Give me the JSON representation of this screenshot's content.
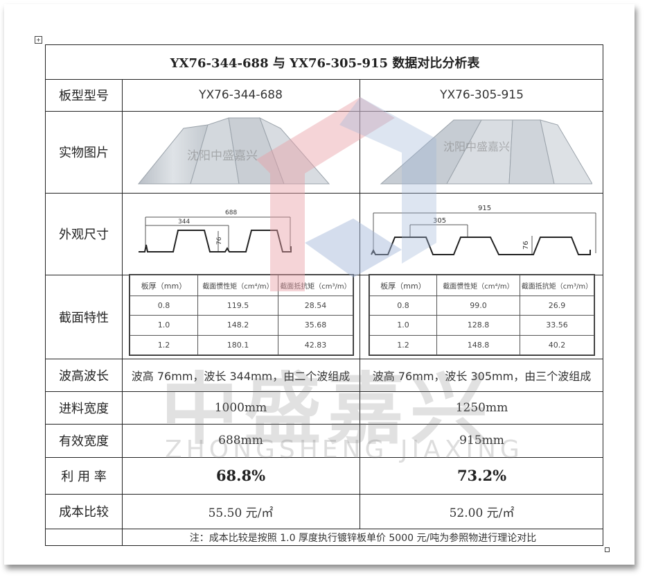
{
  "title": "YX76-344-688 与 YX76-305-915 数据对比分析表",
  "row_labels": {
    "model": "板型型号",
    "photo": "实物图片",
    "dimensions": "外观尺寸",
    "section": "截面特性",
    "wave": "波高波长",
    "feed_width": "进料宽度",
    "effective_width": "有效宽度",
    "utilization": "利 用 率",
    "cost": "成本比较"
  },
  "products": [
    {
      "model": "YX76-344-688",
      "photo_watermark": "沈阳中盛嘉兴",
      "dims": {
        "total": "688",
        "pitch": "344",
        "height": "76"
      },
      "section_headers": [
        "板厚（mm）",
        "截面惯性矩（cm⁴/m）",
        "截面抵抗矩（cm³/m）"
      ],
      "section_rows": [
        [
          "0.8",
          "119.5",
          "28.54"
        ],
        [
          "1.0",
          "148.2",
          "35.68"
        ],
        [
          "1.2",
          "180.1",
          "42.83"
        ]
      ],
      "wave": "波高 76mm，波长 344mm，由二个波组成",
      "feed_width": "1000mm",
      "effective_width": "688mm",
      "utilization": "68.8%",
      "cost": "55.50 元/㎡"
    },
    {
      "model": "YX76-305-915",
      "photo_watermark": "沈阳中盛嘉兴",
      "dims": {
        "total": "915",
        "pitch": "305",
        "height": "76"
      },
      "section_headers": [
        "板厚（mm）",
        "截面惯性矩（cm⁴/m）",
        "截面抵抗矩（cm³/m）"
      ],
      "section_rows": [
        [
          "0.8",
          "99.0",
          "26.9"
        ],
        [
          "1.0",
          "128.8",
          "33.56"
        ],
        [
          "1.2",
          "148.8",
          "40.2"
        ]
      ],
      "wave": "波高 76mm，波长 305mm，由三个波组成",
      "feed_width": "1250mm",
      "effective_width": "915mm",
      "utilization": "73.2%",
      "cost": "52.00 元/㎡"
    }
  ],
  "note": "注：成本比较是按照 1.0 厚度执行镀锌板单价 5000 元/吨为参照物进行理论对比",
  "watermark": {
    "cn": "中盛嘉兴",
    "en": "ZHONGSHENG JIAXING",
    "logo_colors": [
      "#e8a0a6",
      "#9fb4d6"
    ]
  }
}
